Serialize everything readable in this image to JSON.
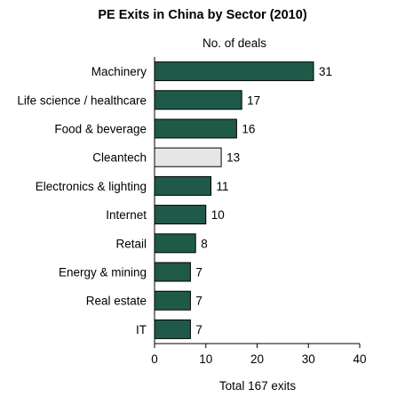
{
  "chart_data": {
    "type": "bar",
    "orientation": "horizontal",
    "title": "PE Exits in China by Sector (2010)",
    "subtitle": "No. of deals",
    "xlabel": "Total 167 exits",
    "ylabel": "",
    "categories": [
      "Machinery",
      "Life science / healthcare",
      "Food & beverage",
      "Cleantech",
      "Electronics & lighting",
      "Internet",
      "Retail",
      "Energy & mining",
      "Real estate",
      "IT"
    ],
    "values": [
      31,
      17,
      16,
      13,
      11,
      10,
      8,
      7,
      7,
      7
    ],
    "bar_colors": [
      "#1f5a49",
      "#1f5a49",
      "#1f5a49",
      "#e6e6e6",
      "#1f5a49",
      "#1f5a49",
      "#1f5a49",
      "#1f5a49",
      "#1f5a49",
      "#1f5a49"
    ],
    "xlim": [
      0,
      40
    ],
    "xticks": [
      0,
      10,
      20,
      30,
      40
    ],
    "grid": false,
    "data_labels": true,
    "legend": "none"
  }
}
